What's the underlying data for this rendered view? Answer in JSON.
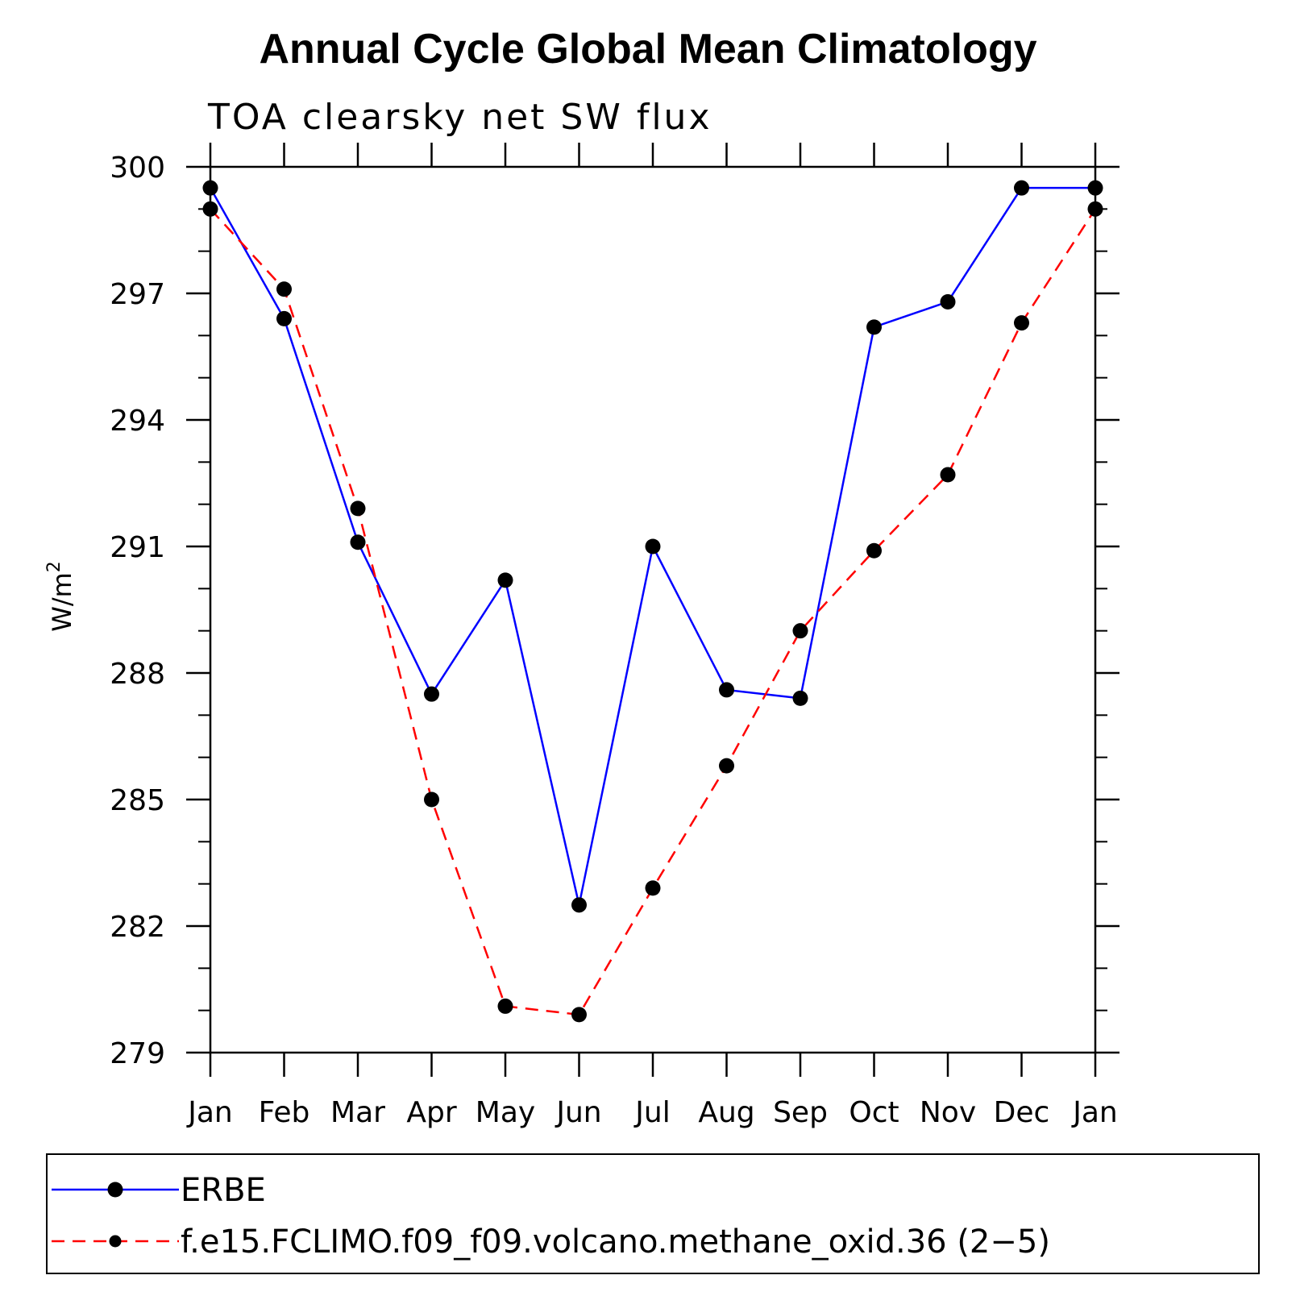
{
  "chart_data": {
    "type": "line",
    "title": "Annual Cycle Global Mean Climatology",
    "subtitle": "TOA clearsky net SW flux",
    "ylabel": "W/m",
    "ylabel_superscript": "2",
    "categories": [
      "Jan",
      "Feb",
      "Mar",
      "Apr",
      "May",
      "Jun",
      "Jul",
      "Aug",
      "Sep",
      "Oct",
      "Nov",
      "Dec",
      "Jan"
    ],
    "ylim": [
      279,
      300
    ],
    "yticks": [
      279,
      282,
      285,
      288,
      291,
      294,
      297,
      300
    ],
    "yminor_step": 1,
    "series": [
      {
        "name": "ERBE",
        "color": "#0000ff",
        "line_style": "solid",
        "marker": "circle",
        "values": [
          299.5,
          296.4,
          291.1,
          287.5,
          290.2,
          282.5,
          291.0,
          287.6,
          287.4,
          296.2,
          296.8,
          299.5,
          299.5
        ]
      },
      {
        "name": "f.e15.FCLIMO.f09_f09.volcano.methane_oxid.36 (2−5)",
        "color": "#ff0000",
        "line_style": "dashed",
        "marker": "circle",
        "values": [
          299.0,
          297.1,
          291.9,
          285.0,
          280.1,
          279.9,
          282.9,
          285.8,
          289.0,
          290.9,
          292.7,
          296.3,
          299.0
        ]
      }
    ],
    "legend_position": "bottom",
    "grid": false
  }
}
